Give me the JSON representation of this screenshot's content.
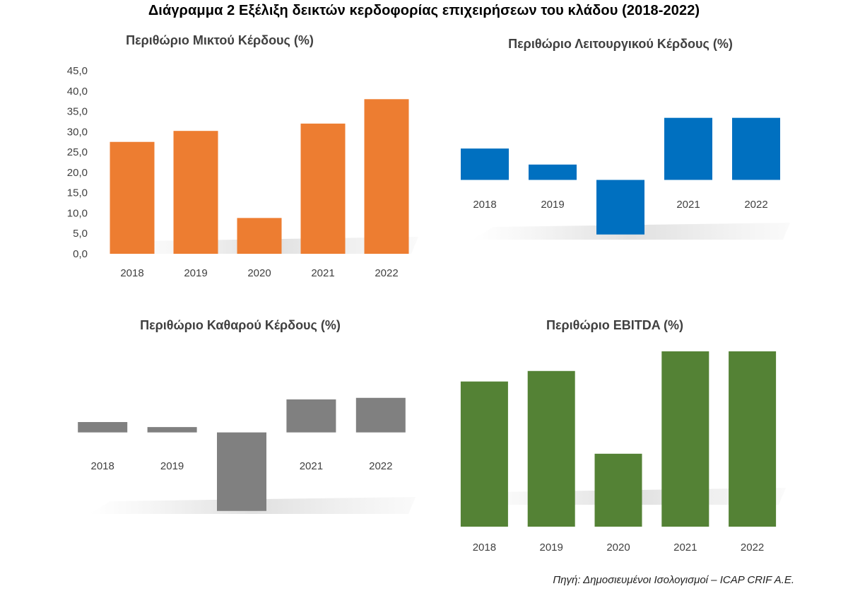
{
  "title": "Διάγραμμα 2 Εξέλιξη δεικτών κερδοφορίας επιχειρήσεων του κλάδου (2018-2022)",
  "source": "Πηγή: Δημοσιευμένοι Ισολογισμοί – ICAP CRIF A.E.",
  "chart_data": [
    {
      "type": "bar",
      "title": "Περιθώριο Μικτού Κέρδους (%)",
      "categories": [
        "2018",
        "2019",
        "2020",
        "2021",
        "2022"
      ],
      "values": [
        27.5,
        30.2,
        8.8,
        32.0,
        38.0
      ],
      "ylim": [
        0,
        45
      ],
      "yticks": [
        "0,0",
        "5,0",
        "10,0",
        "15,0",
        "20,0",
        "25,0",
        "30,0",
        "35,0",
        "40,0",
        "45,0"
      ],
      "color": "#ED7D31",
      "axis_visible": true,
      "grid": false
    },
    {
      "type": "bar",
      "title": "Περιθώριο Λειτουργικού Κέρδους (%)",
      "categories": [
        "2018",
        "2019",
        "2020",
        "2021",
        "2022"
      ],
      "values": [
        9.2,
        4.5,
        -16.0,
        18.2,
        18.2
      ],
      "ylim": [
        -20,
        20
      ],
      "color": "#0070C0",
      "axis_visible": false,
      "grid": false
    },
    {
      "type": "bar",
      "title": "Περιθώριο Καθαρού Κέρδους (%)",
      "categories": [
        "2018",
        "2019",
        "2020",
        "2021",
        "2022"
      ],
      "values": [
        3.3,
        1.7,
        -25.0,
        10.5,
        11.0
      ],
      "ylim": [
        -30,
        15
      ],
      "color": "#808080",
      "axis_visible": false,
      "grid": false
    },
    {
      "type": "bar",
      "title": "Περιθώριο EBITDA (%)",
      "categories": [
        "2018",
        "2019",
        "2020",
        "2021",
        "2022"
      ],
      "values": [
        20.7,
        22.2,
        10.4,
        25.0,
        25.0
      ],
      "ylim": [
        0,
        25
      ],
      "color": "#548235",
      "axis_visible": false,
      "grid": false
    }
  ]
}
